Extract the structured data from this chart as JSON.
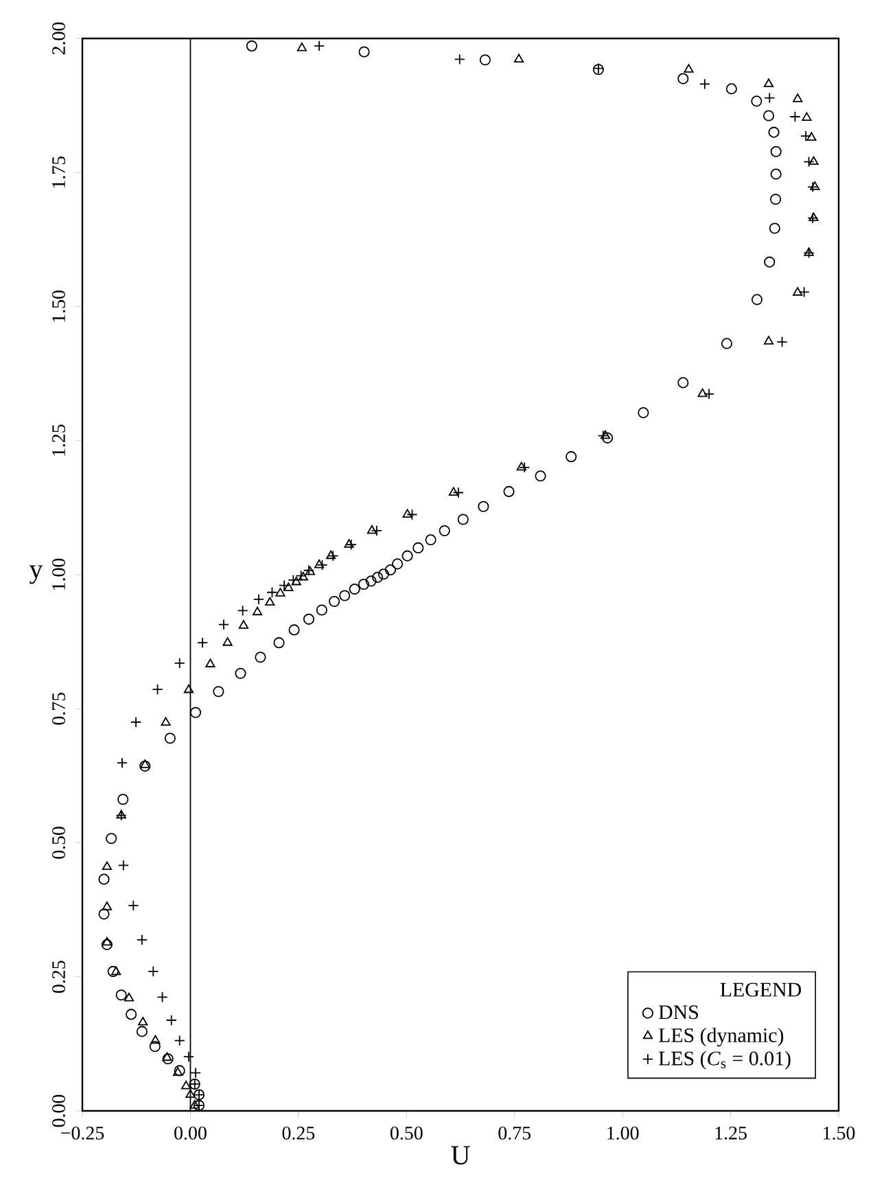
{
  "chart_data": {
    "type": "scatter",
    "xlabel": "U",
    "ylabel": "y",
    "legend_title": "LEGEND",
    "xlim": [
      -0.25,
      1.5
    ],
    "ylim": [
      0,
      2
    ],
    "xticks": [
      {
        "value": -0.25,
        "label": "−0.25"
      },
      {
        "value": 0,
        "label": "0.00"
      },
      {
        "value": 0.25,
        "label": "0.25"
      },
      {
        "value": 0.5,
        "label": "0.50"
      },
      {
        "value": 0.75,
        "label": "0.75"
      },
      {
        "value": 1,
        "label": "1.00"
      },
      {
        "value": 1.25,
        "label": "1.25"
      },
      {
        "value": 1.5,
        "label": "1.50"
      }
    ],
    "yticks": [
      {
        "value": 0,
        "label": "0.00"
      },
      {
        "value": 0.25,
        "label": "0.25"
      },
      {
        "value": 0.5,
        "label": "0.50"
      },
      {
        "value": 0.75,
        "label": "0.75"
      },
      {
        "value": 1,
        "label": "1.00"
      },
      {
        "value": 1.25,
        "label": "1.25"
      },
      {
        "value": 1.5,
        "label": "1.50"
      },
      {
        "value": 1.75,
        "label": "1.75"
      },
      {
        "value": 2,
        "label": "2.00"
      }
    ],
    "grid": false,
    "legend": "bottom right",
    "ref_lines": [
      {
        "axis": "x",
        "value": 0,
        "color": "#000000"
      }
    ],
    "series": [
      {
        "name": "DNS",
        "color": "#000000",
        "marker": "circle",
        "x": [
          0.02,
          0.02,
          0.01,
          -0.025,
          -0.052,
          -0.082,
          -0.112,
          -0.137,
          -0.16,
          -0.179,
          -0.193,
          -0.2,
          -0.2,
          -0.183,
          -0.156,
          -0.105,
          -0.047,
          0.012,
          0.065,
          0.116,
          0.162,
          0.205,
          0.24,
          0.274,
          0.304,
          0.333,
          0.357,
          0.38,
          0.401,
          0.418,
          0.433,
          0.447,
          0.463,
          0.479,
          0.502,
          0.527,
          0.556,
          0.588,
          0.631,
          0.678,
          0.737,
          0.81,
          0.881,
          0.965,
          1.048,
          1.14,
          1.241,
          1.311,
          1.34,
          1.352,
          1.354,
          1.355,
          1.355,
          1.35,
          1.338,
          1.31,
          1.252,
          1.14,
          0.944,
          0.682,
          0.402,
          0.142
        ],
        "values": [
          0.01,
          0.03,
          0.05,
          0.075,
          0.097,
          0.12,
          0.148,
          0.18,
          0.216,
          0.26,
          0.31,
          0.367,
          0.432,
          0.508,
          0.581,
          0.643,
          0.695,
          0.743,
          0.782,
          0.816,
          0.846,
          0.873,
          0.897,
          0.917,
          0.934,
          0.95,
          0.961,
          0.973,
          0.982,
          0.988,
          0.995,
          1.001,
          1.009,
          1.02,
          1.035,
          1.05,
          1.065,
          1.082,
          1.103,
          1.127,
          1.155,
          1.184,
          1.22,
          1.255,
          1.302,
          1.358,
          1.431,
          1.513,
          1.583,
          1.646,
          1.7,
          1.747,
          1.789,
          1.825,
          1.856,
          1.883,
          1.906,
          1.925,
          1.942,
          1.96,
          1.975,
          1.986
        ]
      },
      {
        "name": "LES (dynamic)",
        "color": "#000000",
        "marker": "triangle",
        "x": [
          0.01,
          0.0,
          -0.01,
          -0.029,
          -0.054,
          -0.081,
          -0.11,
          -0.142,
          -0.172,
          -0.193,
          -0.193,
          -0.193,
          -0.16,
          -0.105,
          -0.057,
          -0.004,
          0.046,
          0.086,
          0.123,
          0.155,
          0.184,
          0.208,
          0.227,
          0.245,
          0.261,
          0.277,
          0.298,
          0.325,
          0.367,
          0.42,
          0.502,
          0.609,
          0.766,
          0.96,
          1.185,
          1.338,
          1.405,
          1.431,
          1.442,
          1.445,
          1.442,
          1.437,
          1.426,
          1.405,
          1.338,
          1.153,
          0.76,
          0.258
        ],
        "values": [
          0.01,
          0.03,
          0.046,
          0.071,
          0.099,
          0.131,
          0.165,
          0.21,
          0.259,
          0.314,
          0.38,
          0.455,
          0.551,
          0.645,
          0.724,
          0.785,
          0.833,
          0.873,
          0.905,
          0.93,
          0.948,
          0.965,
          0.975,
          0.986,
          0.995,
          1.005,
          1.018,
          1.035,
          1.056,
          1.082,
          1.112,
          1.153,
          1.2,
          1.259,
          1.337,
          1.435,
          1.526,
          1.6,
          1.665,
          1.723,
          1.77,
          1.815,
          1.852,
          1.887,
          1.915,
          1.942,
          1.961,
          1.982
        ]
      },
      {
        "name": "LES (*C*$_{s}$ = 0.01)",
        "color": "#000000",
        "marker": "cross",
        "x": [
          0.02,
          0.02,
          0.01,
          0.012,
          -0.004,
          -0.025,
          -0.044,
          -0.065,
          -0.086,
          -0.112,
          -0.132,
          -0.155,
          -0.16,
          -0.158,
          -0.126,
          -0.076,
          -0.025,
          0.028,
          0.077,
          0.121,
          0.158,
          0.189,
          0.217,
          0.238,
          0.256,
          0.274,
          0.305,
          0.33,
          0.372,
          0.431,
          0.513,
          0.62,
          0.773,
          0.955,
          1.2,
          1.369,
          1.42,
          1.431,
          1.44,
          1.44,
          1.431,
          1.424,
          1.399,
          1.34,
          1.19,
          0.944,
          0.623,
          0.298
        ],
        "values": [
          0.01,
          0.03,
          0.05,
          0.071,
          0.101,
          0.131,
          0.169,
          0.212,
          0.26,
          0.319,
          0.383,
          0.458,
          0.551,
          0.649,
          0.725,
          0.786,
          0.835,
          0.873,
          0.907,
          0.933,
          0.954,
          0.967,
          0.98,
          0.99,
          0.998,
          1.008,
          1.018,
          1.035,
          1.056,
          1.082,
          1.112,
          1.153,
          1.2,
          1.259,
          1.337,
          1.434,
          1.527,
          1.6,
          1.665,
          1.723,
          1.77,
          1.818,
          1.854,
          1.889,
          1.915,
          1.944,
          1.961,
          1.986
        ]
      }
    ]
  }
}
